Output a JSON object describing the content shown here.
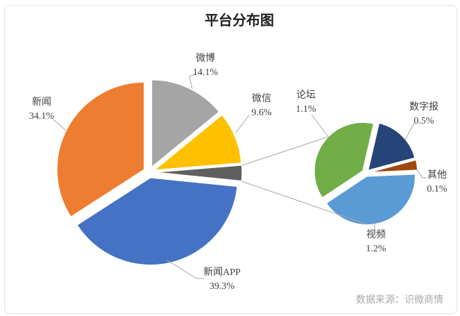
{
  "title": "平台分布图",
  "source_note": "数据来源：识微商情",
  "chart_data": {
    "type": "pie",
    "subtype": "pie-of-pie",
    "title": "平台分布图",
    "legend": "none",
    "main_pie": {
      "start_angle_deg": 0,
      "slices": [
        {
          "id": "weibo",
          "label": "微博",
          "pct": 14.1,
          "pct_label": "14.1%",
          "color": "#A5A5A5"
        },
        {
          "id": "weixin",
          "label": "微信",
          "pct": 9.6,
          "pct_label": "9.6%",
          "color": "#FFC000"
        },
        {
          "id": "grouped-other",
          "label": "",
          "pct": 2.9,
          "pct_label": "",
          "color": "#5F5F5F"
        },
        {
          "id": "xinwen-app",
          "label": "新闻APP",
          "pct": 39.3,
          "pct_label": "39.3%",
          "color": "#4472C4"
        },
        {
          "id": "xinwen",
          "label": "新闻",
          "pct": 34.1,
          "pct_label": "34.1%",
          "color": "#ED7D31"
        }
      ]
    },
    "secondary_pie": {
      "start_angle_deg": 13,
      "slices": [
        {
          "id": "shuzibao",
          "label": "数字报",
          "pct": 0.5,
          "pct_label": "0.5%",
          "color": "#264478"
        },
        {
          "id": "qita",
          "label": "其他",
          "pct": 0.1,
          "pct_label": "0.1%",
          "color": "#9E480E"
        },
        {
          "id": "shipin",
          "label": "视频",
          "pct": 1.2,
          "pct_label": "1.2%",
          "color": "#5B9BD5"
        },
        {
          "id": "luntan",
          "label": "论坛",
          "pct": 1.1,
          "pct_label": "1.1%",
          "color": "#70AD47"
        }
      ]
    },
    "connector_color": "#A6A6A6"
  }
}
